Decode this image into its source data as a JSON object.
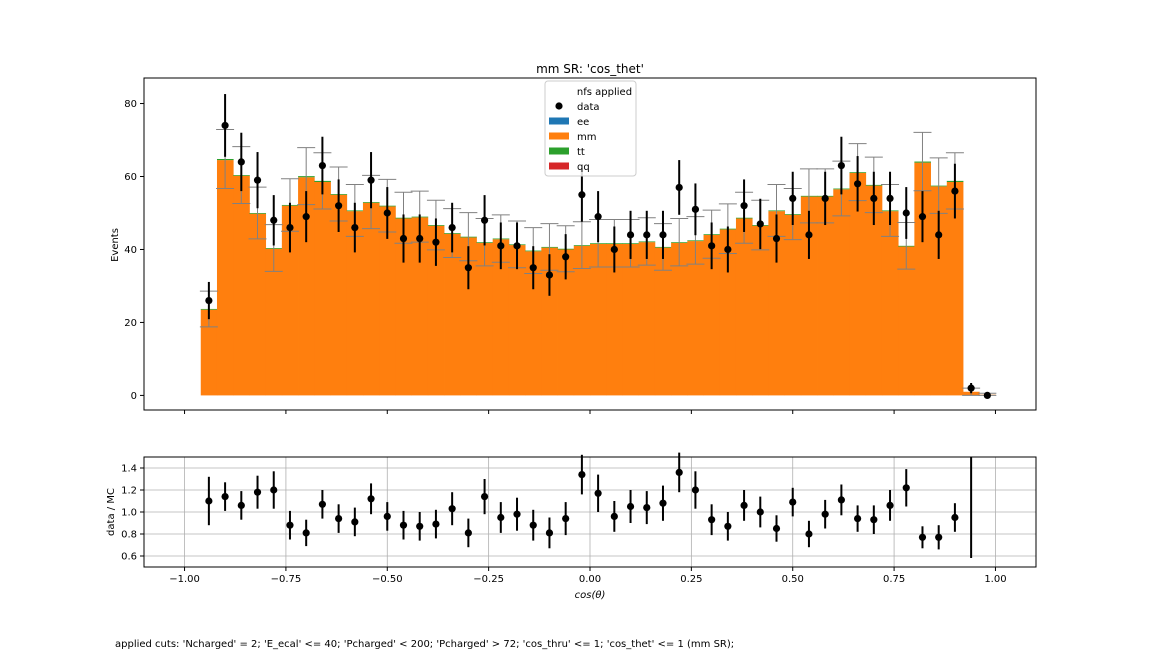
{
  "chart_data": [
    {
      "type": "bar",
      "title": "mm SR: 'cos_thet'",
      "xlabel": "",
      "ylabel": "Events",
      "xlim": [
        -1.1,
        1.1
      ],
      "ylim": [
        -4,
        87
      ],
      "yticks": [
        0,
        20,
        40,
        60,
        80
      ],
      "stacked": true,
      "grid": false,
      "legend": {
        "title": "nfs applied",
        "placement": "top-center",
        "entries": [
          {
            "label": "data",
            "kind": "marker",
            "color": "#000000"
          },
          {
            "label": "ee",
            "kind": "patch",
            "color": "#1f77b4"
          },
          {
            "label": "mm",
            "kind": "patch",
            "color": "#ff7f0e"
          },
          {
            "label": "tt",
            "kind": "patch",
            "color": "#2ca02c"
          },
          {
            "label": "qq",
            "kind": "patch",
            "color": "#d62728"
          }
        ]
      },
      "bin_edges_start": -0.96,
      "bin_width": 0.04,
      "series": [
        {
          "name": "mm",
          "color": "#ff7f0e",
          "values": [
            23.5,
            64.5,
            60.2,
            49.8,
            40.2,
            52,
            59.8,
            58.5,
            55,
            50.5,
            52.8,
            51.8,
            48.5,
            48.8,
            46.5,
            44.3,
            43.3,
            41.8,
            42.8,
            41.2,
            39.5,
            40.5,
            40,
            41,
            41.5,
            41.5,
            41.5,
            42,
            40.5,
            41.8,
            42.3,
            44,
            45.5,
            48.5,
            46.5,
            50.5,
            49.5,
            54.5,
            54.5,
            56.5,
            61,
            57.5,
            50.5,
            40.8,
            63.8,
            57.3,
            58.5,
            1,
            0.2
          ]
        },
        {
          "name": "tt",
          "color": "#2ca02c",
          "values": [
            0.2,
            0.3,
            0.2,
            0.2,
            0.2,
            0.2,
            0.3,
            0.3,
            0.2,
            0.2,
            0.2,
            0.2,
            0.2,
            0.2,
            0.2,
            0.2,
            0.2,
            0.2,
            0.2,
            0.2,
            0.2,
            0.2,
            0.2,
            0.2,
            0.2,
            0.2,
            0.2,
            0.2,
            0.2,
            0.2,
            0.2,
            0.2,
            0.2,
            0.2,
            0.2,
            0.2,
            0.2,
            0.2,
            0.2,
            0.2,
            0.2,
            0.2,
            0.2,
            0.2,
            0.3,
            0.2,
            0.3,
            0,
            0
          ]
        }
      ],
      "data_points": {
        "x": [
          -0.94,
          -0.9,
          -0.86,
          -0.82,
          -0.78,
          -0.74,
          -0.7,
          -0.66,
          -0.62,
          -0.58,
          -0.54,
          -0.5,
          -0.46,
          -0.42,
          -0.38,
          -0.34,
          -0.3,
          -0.26,
          -0.22,
          -0.18,
          -0.14,
          -0.1,
          -0.06,
          -0.02,
          0.02,
          0.06,
          0.1,
          0.14,
          0.18,
          0.22,
          0.26,
          0.3,
          0.34,
          0.38,
          0.42,
          0.46,
          0.5,
          0.54,
          0.58,
          0.62,
          0.66,
          0.7,
          0.74,
          0.78,
          0.82,
          0.86,
          0.9,
          0.94,
          0.98
        ],
        "y": [
          26,
          74,
          64,
          59,
          48,
          46,
          49,
          63,
          52,
          46,
          59,
          50,
          43,
          43,
          42,
          46,
          35,
          48,
          41,
          41,
          35,
          33,
          38,
          55,
          49,
          40,
          44,
          44,
          44,
          57,
          51,
          41,
          40,
          52,
          47,
          43,
          54,
          44,
          54,
          63,
          58,
          54,
          54,
          50,
          49,
          44,
          56,
          2,
          0
        ],
        "yerr": [
          5.1,
          8.6,
          8,
          7.7,
          6.9,
          6.8,
          7,
          7.9,
          7.2,
          6.8,
          7.7,
          7.1,
          6.6,
          6.6,
          6.5,
          6.8,
          5.9,
          6.9,
          6.4,
          6.4,
          5.9,
          5.7,
          6.2,
          7.4,
          7,
          6.3,
          6.6,
          6.6,
          6.6,
          7.5,
          7.1,
          6.4,
          6.3,
          7.2,
          6.9,
          6.6,
          7.3,
          6.6,
          7.3,
          7.9,
          7.6,
          7.3,
          7.3,
          7.1,
          7,
          6.6,
          7.5,
          1.4,
          0
        ]
      },
      "mc_uncertainty": [
        4.9,
        8.1,
        7.8,
        7.1,
        6.4,
        7.2,
        7.8,
        7.7,
        7.4,
        7.1,
        7.3,
        7.2,
        7,
        7,
        6.8,
        6.7,
        6.6,
        6.5,
        6.5,
        6.4,
        6.3,
        6.4,
        6.3,
        6.4,
        6.5,
        6.5,
        6.5,
        6.5,
        6.4,
        6.5,
        6.5,
        6.6,
        6.8,
        7,
        6.8,
        7.1,
        7,
        7.4,
        7.4,
        7.5,
        7.8,
        7.6,
        7.1,
        6.4,
        8,
        7.6,
        7.7,
        1,
        0.4
      ]
    },
    {
      "type": "scatter",
      "title": "",
      "xlabel": "cos(θ)",
      "ylabel": "data / MC",
      "xlim": [
        -1.1,
        1.1
      ],
      "ylim": [
        0.5,
        1.5
      ],
      "xticks": [
        -1.0,
        -0.75,
        -0.5,
        -0.25,
        0.0,
        0.25,
        0.5,
        0.75,
        1.0
      ],
      "xtick_labels": [
        "−1.00",
        "−0.75",
        "−0.50",
        "−0.25",
        "0.00",
        "0.25",
        "0.50",
        "0.75",
        "1.00"
      ],
      "yticks": [
        0.6,
        0.8,
        1.0,
        1.2,
        1.4
      ],
      "ytick_labels": [
        "0.6",
        "0.8",
        "1.0",
        "1.2",
        "1.4"
      ],
      "grid": true,
      "x": [
        -0.94,
        -0.9,
        -0.86,
        -0.82,
        -0.78,
        -0.74,
        -0.7,
        -0.66,
        -0.62,
        -0.58,
        -0.54,
        -0.5,
        -0.46,
        -0.42,
        -0.38,
        -0.34,
        -0.3,
        -0.26,
        -0.22,
        -0.18,
        -0.14,
        -0.1,
        -0.06,
        -0.02,
        0.02,
        0.06,
        0.1,
        0.14,
        0.18,
        0.22,
        0.26,
        0.3,
        0.34,
        0.38,
        0.42,
        0.46,
        0.5,
        0.54,
        0.58,
        0.62,
        0.66,
        0.7,
        0.74,
        0.78,
        0.82,
        0.86,
        0.9,
        0.94
      ],
      "y": [
        1.1,
        1.14,
        1.06,
        1.18,
        1.2,
        0.88,
        0.81,
        1.07,
        0.94,
        0.91,
        1.12,
        0.96,
        0.88,
        0.87,
        0.89,
        1.03,
        0.81,
        1.14,
        0.95,
        0.98,
        0.88,
        0.81,
        0.94,
        1.34,
        1.17,
        0.96,
        1.05,
        1.04,
        1.08,
        1.36,
        1.2,
        0.93,
        0.87,
        1.06,
        1.0,
        0.85,
        1.09,
        0.8,
        0.98,
        1.11,
        0.94,
        0.93,
        1.06,
        1.22,
        0.77,
        0.77,
        0.95,
        null
      ],
      "yerr": [
        0.22,
        0.13,
        0.13,
        0.15,
        0.17,
        0.13,
        0.12,
        0.13,
        0.13,
        0.13,
        0.14,
        0.13,
        0.13,
        0.13,
        0.13,
        0.15,
        0.13,
        0.16,
        0.14,
        0.15,
        0.14,
        0.14,
        0.15,
        0.18,
        0.17,
        0.14,
        0.15,
        0.15,
        0.16,
        0.18,
        0.17,
        0.14,
        0.13,
        0.14,
        0.14,
        0.12,
        0.13,
        0.12,
        0.13,
        0.14,
        0.12,
        0.13,
        0.14,
        0.17,
        0.1,
        0.11,
        0.13,
        null
      ],
      "tall_error_bar_at": 0.94
    }
  ],
  "footer": {
    "cuts_text": "applied cuts: 'Ncharged' = 2; 'E_ecal' <= 40; 'Pcharged' < 200; 'Pcharged' > 72; 'cos_thru' <= 1; 'cos_thet' <= 1 (mm SR);"
  }
}
